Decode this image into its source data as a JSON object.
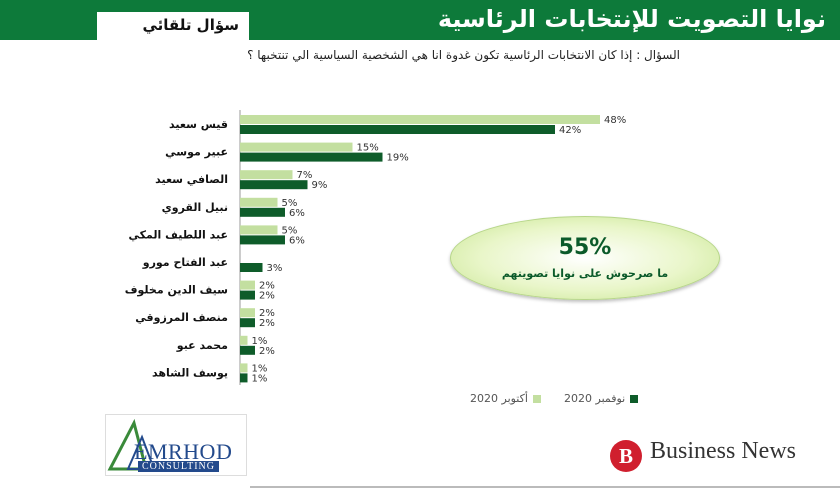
{
  "header": {
    "title": "نوايا التصويت للإنتخابات الرئاسية",
    "tab_label": "سؤال تلقائي"
  },
  "question": "السؤال : إذا كان الانتخابات الرئاسية تكون غدوة انا هي الشخصية السياسية الي تنتخبها ؟",
  "callout": {
    "value": "55%",
    "label": "ما صرحوش على نوايا تصويتهم"
  },
  "legend": {
    "october": "أكتوبر 2020",
    "november": "نوفمبر 2020"
  },
  "logos": {
    "emrhod_word": "EMRHOD",
    "emrhod_sub": "CONSULTING",
    "bn_letter": "B",
    "bn_text": "Business News"
  },
  "colors": {
    "header_green": "#0d7a3a",
    "october": "#c3dfa0",
    "november": "#0e5c2a"
  },
  "chart_data": {
    "type": "bar",
    "orientation": "horizontal",
    "categories": [
      "قيس سعيد",
      "عبير موسي",
      "الصافي سعيد",
      "نبيل القروي",
      "عبد اللطيف المكي",
      "عبد الفتاح مورو",
      "سيف الدين مخلوف",
      "منصف المرزوقي",
      "محمد عبو",
      "يوسف الشاهد"
    ],
    "series": [
      {
        "name": "أكتوبر 2020",
        "values": [
          48,
          15,
          7,
          5,
          5,
          null,
          2,
          2,
          1,
          1
        ]
      },
      {
        "name": "نوفمبر 2020",
        "values": [
          42,
          19,
          9,
          6,
          6,
          3,
          2,
          2,
          2,
          1
        ]
      }
    ],
    "value_suffix": "%",
    "xlim": [
      0,
      50
    ],
    "legend_position": "bottom"
  }
}
